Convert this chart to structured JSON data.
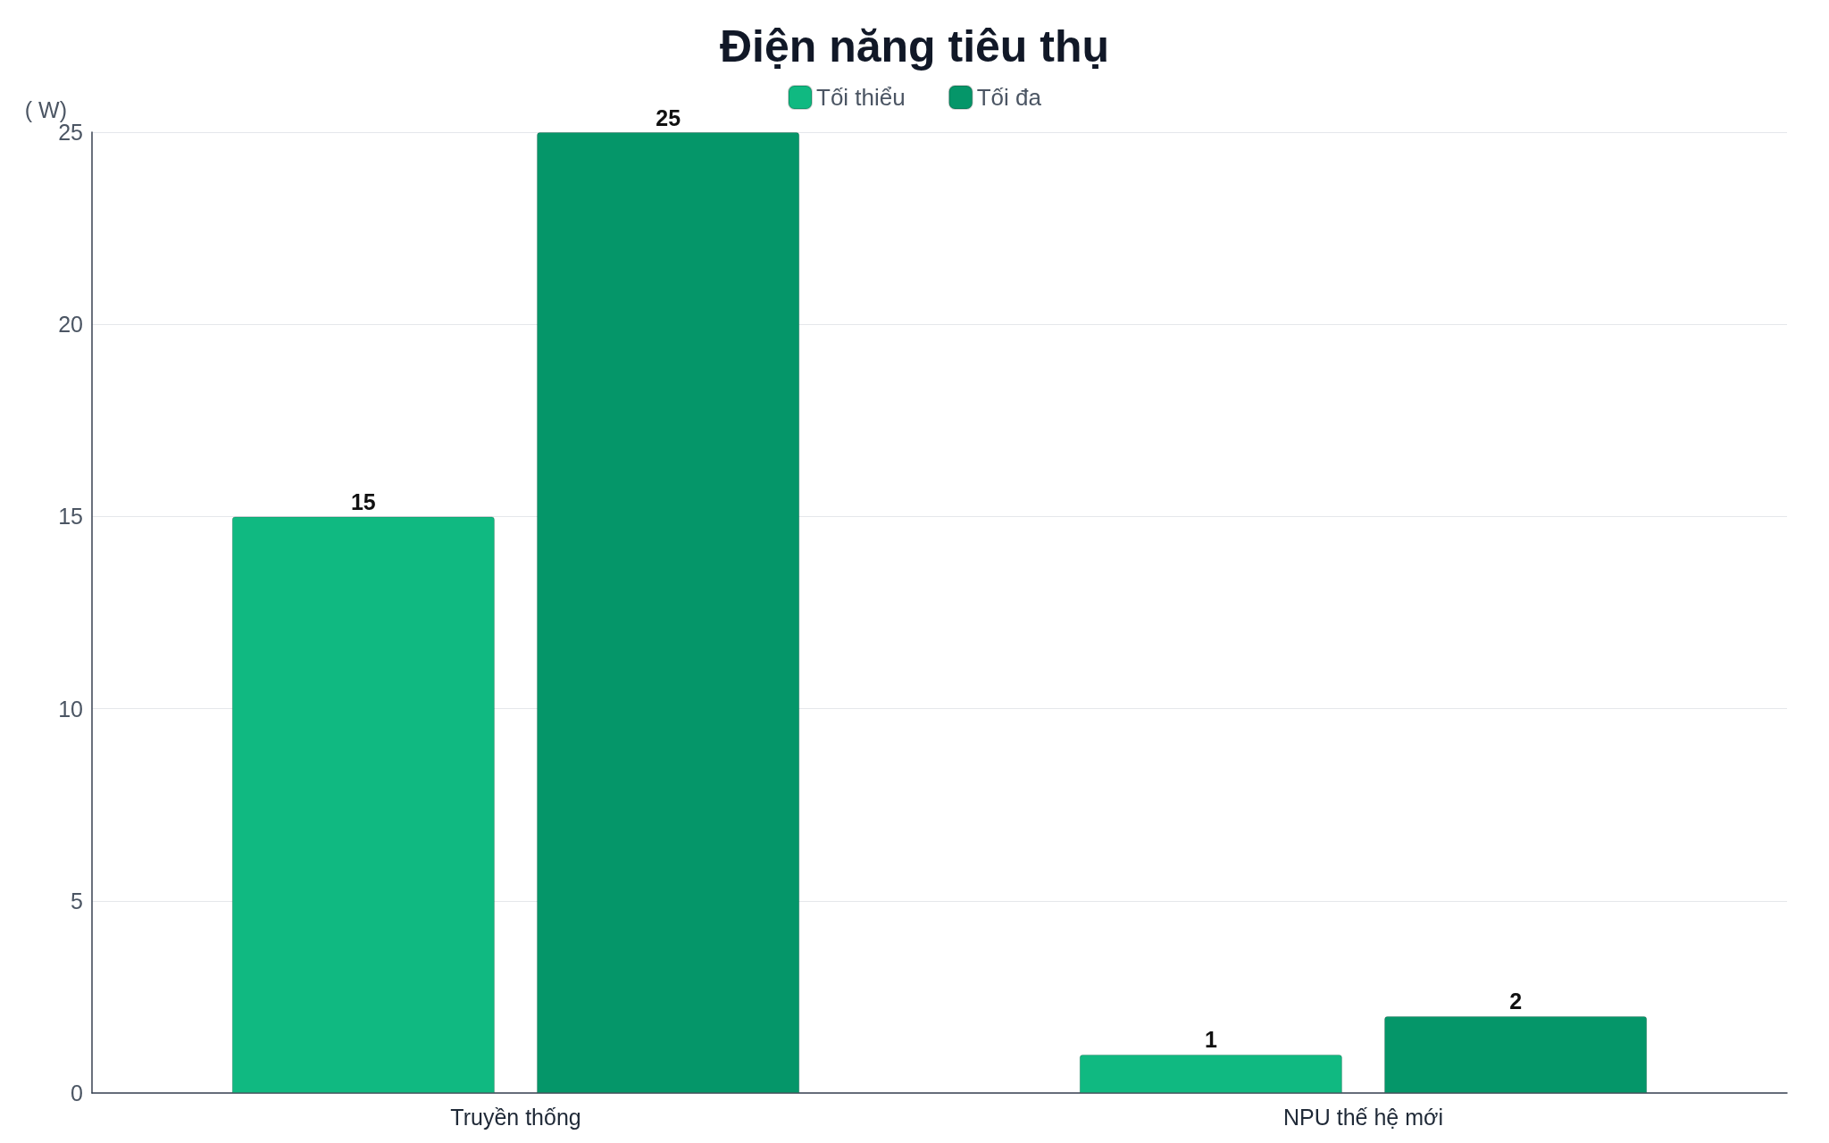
{
  "chart_data": {
    "type": "bar",
    "title": "Điện năng tiêu thụ",
    "ylabel": "( W)",
    "categories": [
      "Truyền thống",
      "NPU thế hệ mới"
    ],
    "series": [
      {
        "name": "Tối thiểu",
        "color": "#10b981",
        "values": [
          15,
          1
        ]
      },
      {
        "name": "Tối đa",
        "color": "#059669",
        "values": [
          25,
          2
        ]
      }
    ],
    "ylim": [
      0,
      25
    ],
    "yticks": [
      0,
      5,
      10,
      15,
      20,
      25
    ],
    "grid": "y",
    "legend": "top",
    "data_labels": true
  }
}
